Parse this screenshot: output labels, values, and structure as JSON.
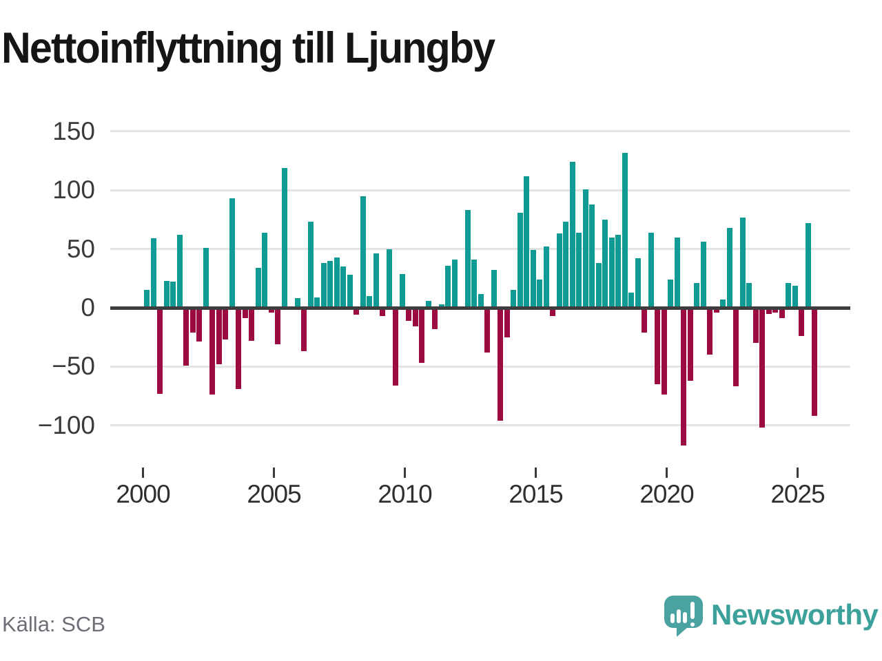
{
  "title": "Nettoinflyttning till Ljungby",
  "source": "Källa: SCB",
  "branding": {
    "name": "Newsworthy"
  },
  "colors": {
    "positive": "#0d9b94",
    "negative": "#9b0b41",
    "grid": "#e4e4e4",
    "zero_line": "#3d3d3d",
    "axis_text": "#3a3a3a",
    "title_text": "#151515",
    "source_text": "#6f6e77",
    "brand_teal": "#4aa3a0"
  },
  "chart_data": {
    "type": "bar",
    "title": "Nettoinflyttning till Ljungby",
    "xlabel": "",
    "ylabel": "",
    "grid": true,
    "legend_position": "none",
    "y_ticks": [
      150,
      100,
      50,
      0,
      -50,
      -100
    ],
    "ylim": [
      -125,
      160
    ],
    "x_tick_labels": [
      "2000",
      "2005",
      "2010",
      "2015",
      "2020",
      "2025"
    ],
    "x": [
      "2000-Q1",
      "2000-Q2",
      "2000-Q3",
      "2000-Q4",
      "2001-Q1",
      "2001-Q2",
      "2001-Q3",
      "2001-Q4",
      "2002-Q1",
      "2002-Q2",
      "2002-Q3",
      "2002-Q4",
      "2003-Q1",
      "2003-Q2",
      "2003-Q3",
      "2003-Q4",
      "2004-Q1",
      "2004-Q2",
      "2004-Q3",
      "2004-Q4",
      "2005-Q1",
      "2005-Q2",
      "2005-Q3",
      "2005-Q4",
      "2006-Q1",
      "2006-Q2",
      "2006-Q3",
      "2006-Q4",
      "2007-Q1",
      "2007-Q2",
      "2007-Q3",
      "2007-Q4",
      "2008-Q1",
      "2008-Q2",
      "2008-Q3",
      "2008-Q4",
      "2009-Q1",
      "2009-Q2",
      "2009-Q3",
      "2009-Q4",
      "2010-Q1",
      "2010-Q2",
      "2010-Q3",
      "2010-Q4",
      "2011-Q1",
      "2011-Q2",
      "2011-Q3",
      "2011-Q4",
      "2012-Q1",
      "2012-Q2",
      "2012-Q3",
      "2012-Q4",
      "2013-Q1",
      "2013-Q2",
      "2013-Q3",
      "2013-Q4",
      "2014-Q1",
      "2014-Q2",
      "2014-Q3",
      "2014-Q4",
      "2015-Q1",
      "2015-Q2",
      "2015-Q3",
      "2015-Q4",
      "2016-Q1",
      "2016-Q2",
      "2016-Q3",
      "2016-Q4",
      "2017-Q1",
      "2017-Q2",
      "2017-Q3",
      "2017-Q4",
      "2018-Q1",
      "2018-Q2",
      "2018-Q3",
      "2018-Q4",
      "2019-Q1",
      "2019-Q2",
      "2019-Q3",
      "2019-Q4",
      "2020-Q1",
      "2020-Q2",
      "2020-Q3",
      "2020-Q4",
      "2021-Q1",
      "2021-Q2",
      "2021-Q3",
      "2021-Q4",
      "2022-Q1",
      "2022-Q2",
      "2022-Q3",
      "2022-Q4",
      "2023-Q1",
      "2023-Q2",
      "2023-Q3",
      "2023-Q4",
      "2024-Q1",
      "2024-Q2",
      "2024-Q3",
      "2024-Q4",
      "2025-Q1",
      "2025-Q2",
      "2025-Q3"
    ],
    "values": [
      15,
      59,
      -73,
      23,
      22,
      62,
      -49,
      -21,
      -29,
      51,
      -74,
      -48,
      -27,
      93,
      -69,
      -9,
      -28,
      34,
      64,
      -4,
      -31,
      119,
      0,
      8,
      -37,
      73,
      9,
      38,
      40,
      43,
      35,
      28,
      -6,
      95,
      10,
      46,
      -7,
      50,
      -66,
      29,
      -11,
      -16,
      -47,
      6,
      -18,
      3,
      36,
      41,
      0,
      83,
      41,
      12,
      -38,
      32,
      -96,
      -25,
      15,
      81,
      112,
      49,
      24,
      52,
      -7,
      63,
      73,
      124,
      64,
      101,
      88,
      38,
      75,
      60,
      62,
      132,
      13,
      42,
      -21,
      64,
      -65,
      -74,
      24,
      60,
      -117,
      -62,
      21,
      56,
      -40,
      -4,
      7,
      68,
      -67,
      77,
      21,
      -30,
      -102,
      -5,
      -4,
      -9,
      21,
      19,
      -24,
      72,
      -92
    ]
  }
}
